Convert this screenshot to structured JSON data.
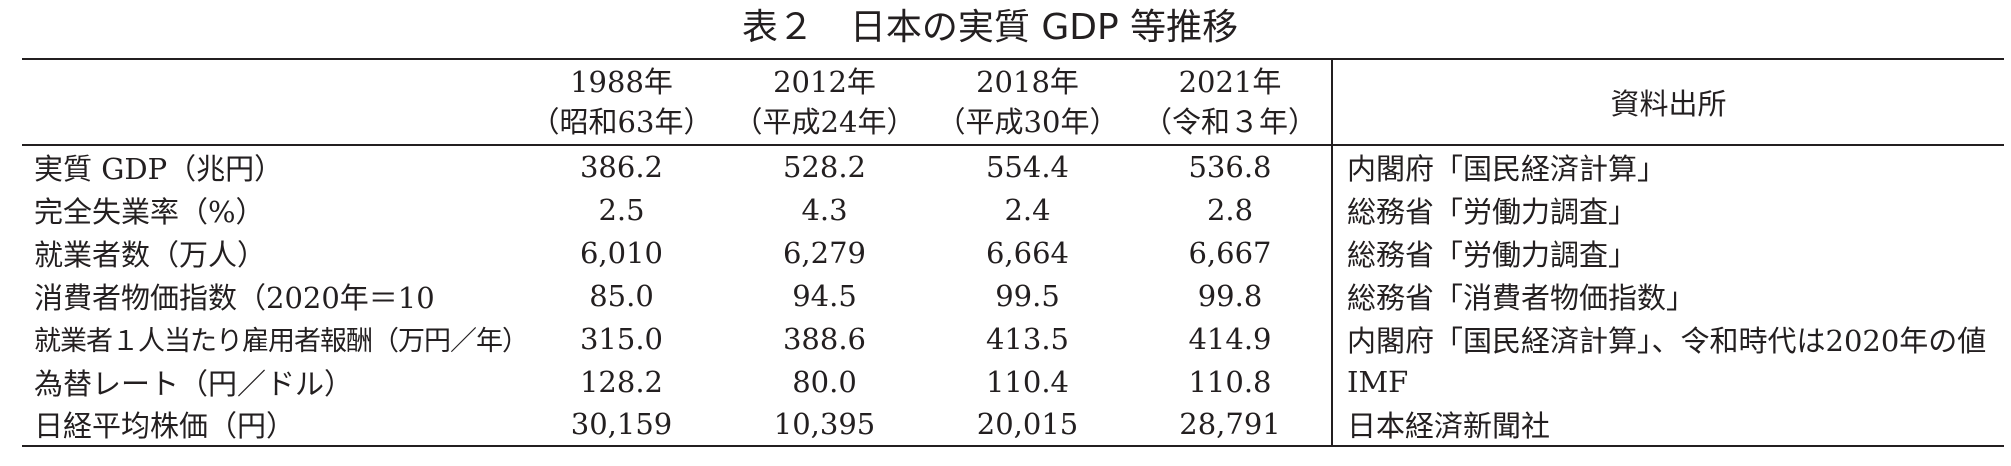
{
  "title": "表２　日本の実質 GDP 等推移",
  "columns": [
    {
      "year": "1988年",
      "era": "（昭和63年）"
    },
    {
      "year": "2012年",
      "era": "（平成24年）"
    },
    {
      "year": "2018年",
      "era": "（平成30年）"
    },
    {
      "year": "2021年",
      "era": "（令和３年）"
    }
  ],
  "source_header": "資料出所",
  "rows": [
    {
      "label": "実質 GDP（兆円）",
      "values": [
        "386.2",
        "528.2",
        "554.4",
        "536.8"
      ],
      "source": "内閣府「国民経済計算」"
    },
    {
      "label": "完全失業率（%）",
      "values": [
        "2.5",
        "4.3",
        "2.4",
        "2.8"
      ],
      "source": "総務省「労働力調査」"
    },
    {
      "label": "就業者数（万人）",
      "values": [
        "6,010",
        "6,279",
        "6,664",
        "6,667"
      ],
      "source": "総務省「労働力調査」"
    },
    {
      "label": "消費者物価指数（2020年＝10",
      "values": [
        "85.0",
        "94.5",
        "99.5",
        "99.8"
      ],
      "source": "総務省「消費者物価指数」"
    },
    {
      "label": "就業者１人当たり雇用者報酬（万円／年）",
      "values": [
        "315.0",
        "388.6",
        "413.5",
        "414.9"
      ],
      "source": "内閣府「国民経済計算」、令和時代は2020年の値"
    },
    {
      "label": "為替レート（円／ドル）",
      "values": [
        "128.2",
        "80.0",
        "110.4",
        "110.8"
      ],
      "source": "IMF"
    },
    {
      "label": "日経平均株価（円）",
      "values": [
        "30,159",
        "10,395",
        "20,015",
        "28,791"
      ],
      "source": "日本経済新聞社"
    }
  ]
}
